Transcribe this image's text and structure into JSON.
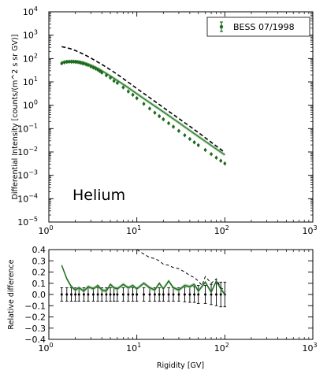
{
  "chart_data": [
    {
      "type": "line",
      "xlabel": "",
      "ylabel": "Differential Intensity [counts/(m^2 s sr GV)]",
      "xscale": "log",
      "yscale": "log",
      "xlim": [
        1,
        1000
      ],
      "ylim": [
        1e-05,
        10000
      ],
      "x_ticks": [
        {
          "v": 1,
          "b": "10",
          "e": "0"
        },
        {
          "v": 10,
          "b": "10",
          "e": "1"
        },
        {
          "v": 100,
          "b": "10",
          "e": "2"
        },
        {
          "v": 1000,
          "b": "10",
          "e": "3"
        }
      ],
      "y_ticks": [
        {
          "v": 1e-05,
          "b": "10",
          "e": "−5"
        },
        {
          "v": 0.0001,
          "b": "10",
          "e": "−4"
        },
        {
          "v": 0.001,
          "b": "10",
          "e": "−3"
        },
        {
          "v": 0.01,
          "b": "10",
          "e": "−2"
        },
        {
          "v": 0.1,
          "b": "10",
          "e": "−1"
        },
        {
          "v": 1,
          "b": "10",
          "e": "0"
        },
        {
          "v": 10,
          "b": "10",
          "e": "1"
        },
        {
          "v": 100,
          "b": "10",
          "e": "2"
        },
        {
          "v": 1000,
          "b": "10",
          "e": "3"
        },
        {
          "v": 10000,
          "b": "10",
          "e": "4"
        }
      ],
      "annotation": "Helium",
      "legend": {
        "placement": "top-right",
        "entries": [
          "BESS 07/1998"
        ]
      },
      "series": [
        {
          "name": "BESS 07/1998",
          "style": "points-with-errorbars",
          "color": "#1e6b1e",
          "x": [
            1.4,
            1.5,
            1.6,
            1.7,
            1.8,
            1.9,
            2.0,
            2.1,
            2.2,
            2.3,
            2.4,
            2.5,
            2.65,
            2.8,
            3.0,
            3.2,
            3.4,
            3.6,
            3.8,
            4.0,
            4.5,
            5.0,
            5.5,
            6.0,
            7.0,
            8.0,
            9.0,
            10,
            12,
            14,
            16,
            18,
            20,
            23,
            26,
            30,
            35,
            40,
            45,
            50,
            60,
            70,
            80,
            90,
            100
          ],
          "y": [
            62,
            68,
            72,
            73,
            73,
            73,
            72,
            71,
            69,
            66,
            63,
            61,
            56,
            52,
            46,
            41,
            37,
            33,
            29,
            25,
            19,
            15,
            11,
            9.0,
            5.8,
            3.9,
            2.8,
            2.0,
            1.15,
            0.72,
            0.48,
            0.34,
            0.25,
            0.17,
            0.12,
            0.08,
            0.052,
            0.036,
            0.026,
            0.0195,
            0.0122,
            0.0081,
            0.0057,
            0.0042,
            0.0032
          ]
        },
        {
          "name": "",
          "style": "model-band",
          "color": "#55a055",
          "x": [
            1.4,
            1.6,
            1.8,
            2.0,
            2.2,
            2.5,
            2.8,
            3.2,
            3.6,
            4.0,
            5.0,
            6.0,
            8.0,
            10,
            14,
            20,
            30,
            40,
            50,
            70,
            100
          ],
          "y": [
            70,
            77,
            79,
            78,
            75,
            67,
            58,
            47,
            38,
            30,
            18,
            11.5,
            5.6,
            3.1,
            1.3,
            0.52,
            0.18,
            0.083,
            0.046,
            0.019,
            0.0075
          ]
        },
        {
          "name": "",
          "style": "dashed",
          "color": "#000000",
          "x": [
            1.4,
            1.6,
            1.8,
            2.0,
            2.3,
            2.6,
            3.0,
            3.5,
            4.0,
            5.0,
            6.0,
            8.0,
            10,
            12,
            14,
            17,
            20,
            25,
            30,
            40,
            50,
            70,
            100
          ],
          "y": [
            320,
            290,
            255,
            220,
            175,
            140,
            105,
            75,
            56,
            33,
            21,
            9.6,
            5.2,
            3.2,
            2.1,
            1.25,
            0.8,
            0.44,
            0.27,
            0.125,
            0.068,
            0.026,
            0.0095
          ]
        }
      ]
    },
    {
      "type": "line",
      "xlabel": "Rigidity [GV]",
      "ylabel": "Relative difference",
      "xscale": "log",
      "yscale": "linear",
      "xlim": [
        1,
        1000
      ],
      "ylim": [
        -0.4,
        0.4
      ],
      "x_ticks": [
        {
          "v": 1,
          "b": "10",
          "e": "0"
        },
        {
          "v": 10,
          "b": "10",
          "e": "1"
        },
        {
          "v": 100,
          "b": "10",
          "e": "2"
        },
        {
          "v": 1000,
          "b": "10",
          "e": "3"
        }
      ],
      "y_ticks": [
        {
          "v": -0.4,
          "label": "−0.4"
        },
        {
          "v": -0.3,
          "label": "−0.3"
        },
        {
          "v": -0.2,
          "label": "−0.2"
        },
        {
          "v": -0.1,
          "label": "−0.1"
        },
        {
          "v": 0.0,
          "label": "0.0"
        },
        {
          "v": 0.1,
          "label": "0.1"
        },
        {
          "v": 0.2,
          "label": "0.2"
        },
        {
          "v": 0.3,
          "label": "0.3"
        },
        {
          "v": 0.4,
          "label": "0.4"
        }
      ],
      "series": [
        {
          "name": "",
          "style": "points-with-errorbars",
          "color": "#000000",
          "x": [
            1.4,
            1.6,
            1.8,
            2.0,
            2.2,
            2.5,
            2.8,
            3.2,
            3.6,
            4.0,
            4.5,
            5.0,
            5.5,
            6.0,
            7.0,
            8.0,
            9.0,
            10,
            12,
            14,
            16,
            18,
            20,
            23,
            26,
            30,
            35,
            40,
            45,
            50,
            60,
            70,
            80,
            90,
            100
          ],
          "y": [
            0,
            0,
            0,
            0,
            0,
            0,
            0,
            0,
            0,
            0,
            0,
            0,
            0,
            0,
            0,
            0,
            0,
            0,
            0,
            0,
            0,
            0,
            0,
            0,
            0,
            0,
            0,
            0,
            0,
            0,
            0,
            0,
            0,
            0,
            0
          ],
          "err": [
            0.06,
            0.06,
            0.06,
            0.06,
            0.06,
            0.06,
            0.06,
            0.06,
            0.06,
            0.06,
            0.06,
            0.06,
            0.06,
            0.06,
            0.06,
            0.06,
            0.06,
            0.06,
            0.06,
            0.06,
            0.06,
            0.06,
            0.06,
            0.06,
            0.06,
            0.06,
            0.065,
            0.07,
            0.07,
            0.08,
            0.08,
            0.09,
            0.1,
            0.11,
            0.11
          ]
        },
        {
          "name": "",
          "style": "band",
          "color": "#1e6b1e",
          "x": [
            1.4,
            1.6,
            1.8,
            2.0,
            2.2,
            2.5,
            2.8,
            3.2,
            3.6,
            4.0,
            4.5,
            5.0,
            5.5,
            6.0,
            7.0,
            8.0,
            9.0,
            10,
            12,
            14,
            16,
            18,
            20,
            23,
            26,
            30,
            35,
            40,
            45,
            50,
            60,
            70,
            80,
            90,
            100
          ],
          "y": [
            0.26,
            0.14,
            0.07,
            0.04,
            0.06,
            0.03,
            0.07,
            0.05,
            0.08,
            0.04,
            0.03,
            0.09,
            0.06,
            0.05,
            0.09,
            0.06,
            0.08,
            0.05,
            0.1,
            0.06,
            0.04,
            0.1,
            0.05,
            0.12,
            0.06,
            0.04,
            0.08,
            0.07,
            0.09,
            0.03,
            0.11,
            0.02,
            0.12,
            0.05,
            0.0
          ]
        },
        {
          "name": "",
          "style": "dashed",
          "color": "#000000",
          "x": [
            10,
            12,
            14,
            16,
            18,
            20,
            23,
            26,
            30,
            35,
            40,
            45,
            50,
            55,
            60,
            70,
            80,
            90,
            100
          ],
          "y": [
            0.4,
            0.36,
            0.33,
            0.32,
            0.3,
            0.27,
            0.26,
            0.24,
            0.23,
            0.2,
            0.17,
            0.15,
            0.12,
            0.08,
            0.16,
            0.1,
            0.14,
            0.06,
            0.04
          ]
        }
      ]
    }
  ]
}
